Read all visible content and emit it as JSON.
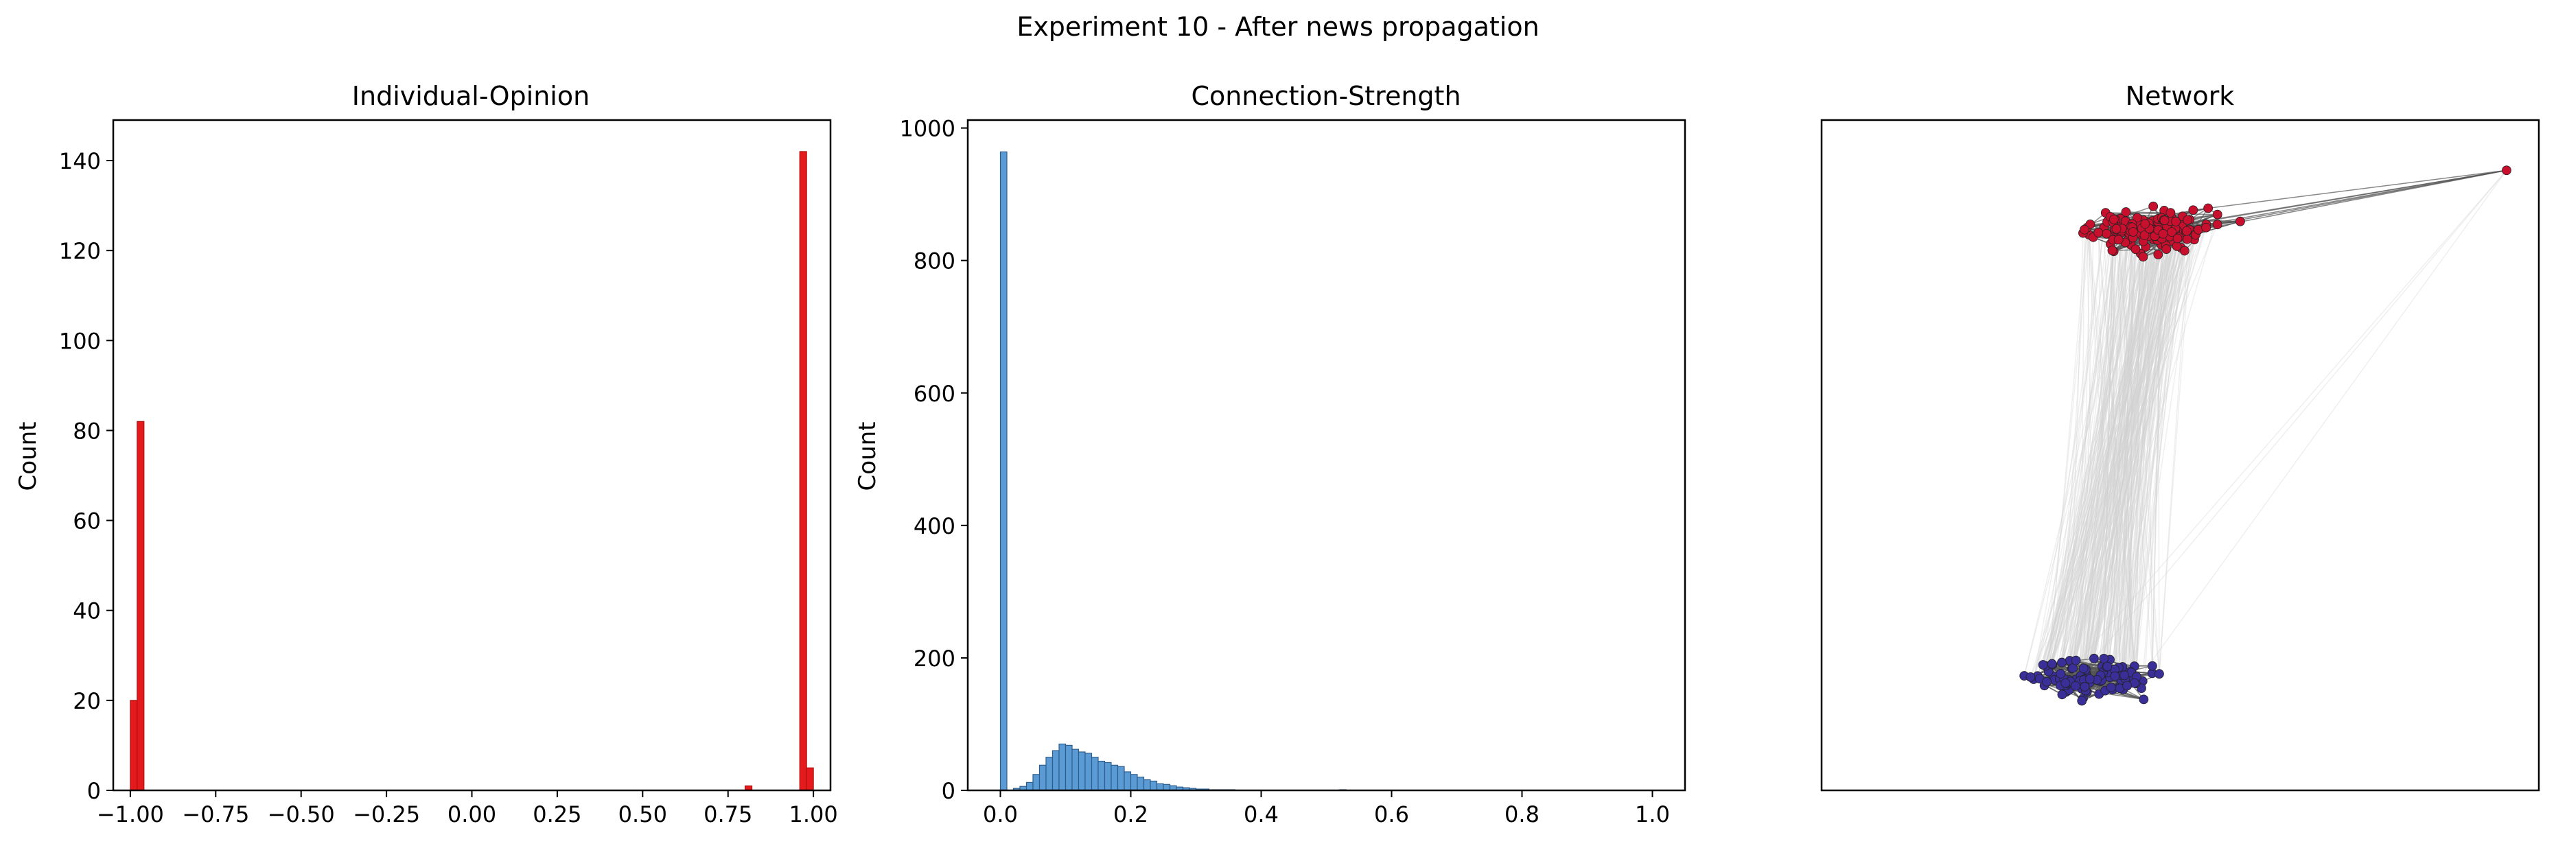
{
  "figure": {
    "title": "Experiment 10 - After news propagation"
  },
  "chart_data": [
    {
      "type": "histogram",
      "title": "Individual-Opinion",
      "xlabel": "",
      "ylabel": "Count",
      "xlim": [
        -1.05,
        1.05
      ],
      "ylim": [
        0,
        149
      ],
      "xticks": [
        -1.0,
        -0.75,
        -0.5,
        -0.25,
        0.0,
        0.25,
        0.5,
        0.75,
        1.0
      ],
      "xtick_labels": [
        "−1.00",
        "−0.75",
        "−0.50",
        "−0.25",
        "0.00",
        "0.25",
        "0.50",
        "0.75",
        "1.00"
      ],
      "yticks": [
        0,
        20,
        40,
        60,
        80,
        100,
        120,
        140
      ],
      "bin_width": 0.02,
      "bars": [
        {
          "x0": -1.0,
          "x1": -0.98,
          "value": 20
        },
        {
          "x0": -0.98,
          "x1": -0.96,
          "value": 82
        },
        {
          "x0": 0.8,
          "x1": 0.82,
          "value": 1
        },
        {
          "x0": 0.96,
          "x1": 0.98,
          "value": 142
        },
        {
          "x0": 0.98,
          "x1": 1.0,
          "value": 5
        }
      ],
      "color": "#e41a1c",
      "edge_color": "#b01010"
    },
    {
      "type": "histogram",
      "title": "Connection-Strength",
      "xlabel": "",
      "ylabel": "Count",
      "xlim": [
        -0.05,
        1.05
      ],
      "ylim": [
        0,
        1012
      ],
      "xticks": [
        0.0,
        0.2,
        0.4,
        0.6,
        0.8,
        1.0
      ],
      "xtick_labels": [
        "0.0",
        "0.2",
        "0.4",
        "0.6",
        "0.8",
        "1.0"
      ],
      "yticks": [
        0,
        200,
        400,
        600,
        800,
        1000
      ],
      "bin_start": 0.0,
      "bin_width": 0.01,
      "values": [
        964,
        0,
        3,
        6,
        12,
        24,
        38,
        50,
        60,
        70,
        68,
        62,
        58,
        56,
        50,
        44,
        42,
        38,
        36,
        28,
        24,
        20,
        16,
        14,
        10,
        9,
        7,
        5,
        4,
        3,
        2,
        2,
        1,
        1,
        1,
        1,
        0,
        0,
        0,
        0,
        0,
        0,
        0,
        0,
        0,
        0,
        0,
        0,
        0,
        0,
        0,
        0,
        1
      ],
      "color": "#5b9bd5",
      "edge_color": "#2f5d8a"
    },
    {
      "type": "network",
      "title": "Network",
      "groups": [
        {
          "name": "",
          "opinion": "positive",
          "color": "#c8102e",
          "node_count": 150
        },
        {
          "name": "",
          "opinion": "negative",
          "color": "#3a2f99",
          "node_count": 100
        }
      ],
      "edge_color_within": "#555555",
      "edge_color_between": "#d0d0d0"
    }
  ]
}
